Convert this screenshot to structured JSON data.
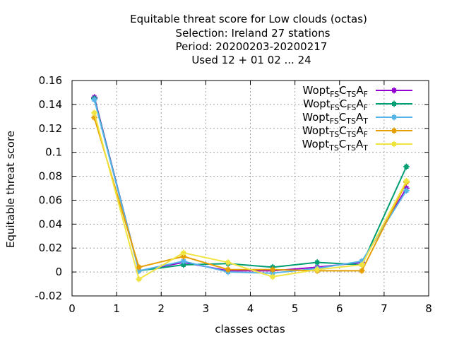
{
  "chart_data": {
    "type": "line",
    "title": "Equitable threat score  for Low clouds (octas)",
    "subtitle_lines": [
      "Selection: Ireland      27 stations",
      "Period: 20200203-20200217",
      "Used  12 + 01 02 ... 24"
    ],
    "xlabel": "classes octas",
    "ylabel": "Equitable threat score",
    "xlim": [
      0,
      8
    ],
    "ylim": [
      -0.02,
      0.16
    ],
    "x_ticks": [
      0,
      1,
      2,
      3,
      4,
      5,
      6,
      7,
      8
    ],
    "x_tick_labels": [
      "0",
      "1",
      "2",
      "3",
      "4",
      "5",
      "6",
      "7",
      "8"
    ],
    "y_ticks": [
      -0.02,
      0,
      0.02,
      0.04,
      0.06,
      0.08,
      0.1,
      0.12,
      0.14,
      0.16
    ],
    "y_tick_labels": [
      "-0.02",
      "0",
      "0.02",
      "0.04",
      "0.06",
      "0.08",
      "0.1",
      "0.12",
      "0.14",
      "0.16"
    ],
    "grid": true,
    "legend_position": "top-right",
    "x": [
      0.5,
      1.5,
      2.5,
      3.5,
      4.5,
      5.5,
      6.5,
      7.5
    ],
    "series": [
      {
        "name": "Wopt FS C TS A F",
        "legend_parts": [
          [
            "Wopt",
            ""
          ],
          [
            "FS",
            "sub"
          ],
          [
            "C",
            ""
          ],
          [
            "TS",
            "sub"
          ],
          [
            "A",
            ""
          ],
          [
            "F",
            "sub"
          ]
        ],
        "color": "#9400d3",
        "values": [
          0.146,
          0.001,
          0.008,
          0.001,
          0.001,
          0.004,
          0.008,
          0.07
        ]
      },
      {
        "name": "Wopt FS C FS A F",
        "legend_parts": [
          [
            "Wopt",
            ""
          ],
          [
            "FS",
            "sub"
          ],
          [
            "C",
            ""
          ],
          [
            "FS",
            "sub"
          ],
          [
            "A",
            ""
          ],
          [
            "F",
            "sub"
          ]
        ],
        "color": "#009e73",
        "values": [
          0.145,
          0.001,
          0.006,
          0.007,
          0.004,
          0.008,
          0.006,
          0.088
        ]
      },
      {
        "name": "Wopt FS C TS A T",
        "legend_parts": [
          [
            "Wopt",
            ""
          ],
          [
            "FS",
            "sub"
          ],
          [
            "C",
            ""
          ],
          [
            "TS",
            "sub"
          ],
          [
            "A",
            ""
          ],
          [
            "T",
            "sub"
          ]
        ],
        "color": "#56b4e9",
        "values": [
          0.144,
          0.001,
          0.009,
          0.0,
          -0.001,
          0.003,
          0.009,
          0.068
        ]
      },
      {
        "name": "Wopt TS C TS A F",
        "legend_parts": [
          [
            "Wopt",
            ""
          ],
          [
            "TS",
            "sub"
          ],
          [
            "C",
            ""
          ],
          [
            "TS",
            "sub"
          ],
          [
            "A",
            ""
          ],
          [
            "F",
            "sub"
          ]
        ],
        "color": "#e69f00",
        "values": [
          0.129,
          0.004,
          0.013,
          0.002,
          0.002,
          0.001,
          0.001,
          0.075
        ]
      },
      {
        "name": "Wopt TS C TS A T",
        "legend_parts": [
          [
            "Wopt",
            ""
          ],
          [
            "TS",
            "sub"
          ],
          [
            "C",
            ""
          ],
          [
            "TS",
            "sub"
          ],
          [
            "A",
            ""
          ],
          [
            "T",
            "sub"
          ]
        ],
        "color": "#f0e442",
        "values": [
          0.133,
          -0.006,
          0.016,
          0.008,
          -0.004,
          0.002,
          0.006,
          0.076
        ]
      }
    ]
  }
}
